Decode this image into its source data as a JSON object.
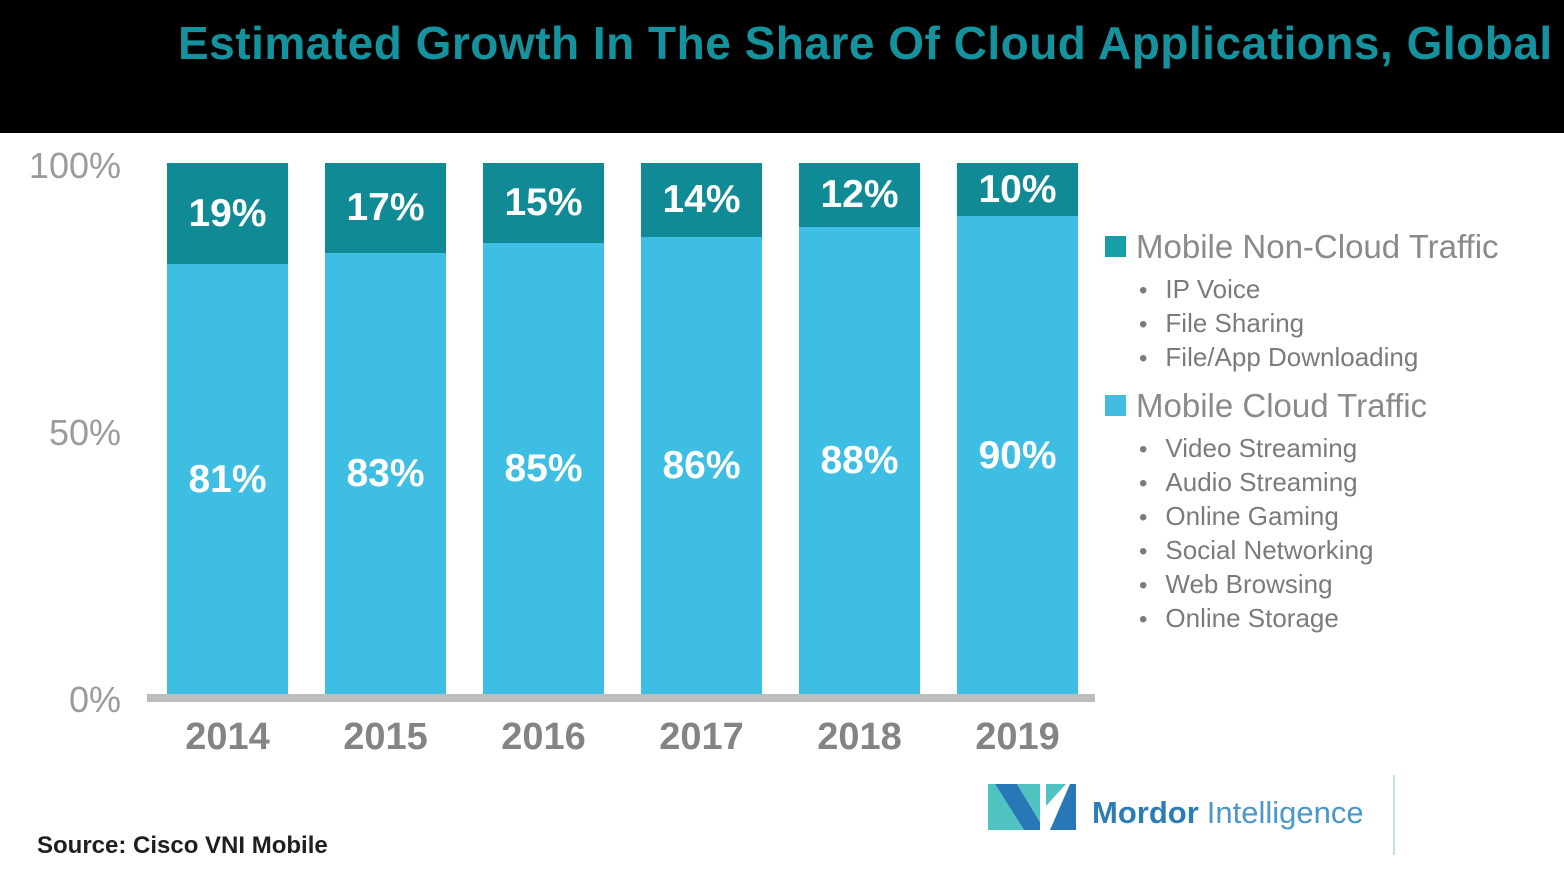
{
  "header": {
    "title": "Estimated Growth In The Share Of Cloud Applications, Global"
  },
  "chart_data": {
    "type": "bar",
    "stacked": true,
    "title": "Estimated Growth In The Share Of Cloud Applications, Global",
    "categories": [
      "2014",
      "2015",
      "2016",
      "2017",
      "2018",
      "2019"
    ],
    "series": [
      {
        "name": "Mobile Non-Cloud Traffic",
        "color": "#108A94",
        "values": [
          19,
          17,
          15,
          14,
          12,
          10
        ]
      },
      {
        "name": "Mobile Cloud Traffic",
        "color": "#3DBEE2",
        "values": [
          81,
          83,
          85,
          86,
          88,
          90
        ]
      }
    ],
    "value_suffix": "%",
    "ylim": [
      0,
      100
    ],
    "yticks": [
      "100%",
      "50%",
      "0%"
    ],
    "grid": false,
    "legend_position": "right"
  },
  "legend": {
    "bullet": "•",
    "groups": [
      {
        "label": "Mobile Non-Cloud Traffic",
        "color": "#16A0A6",
        "items": [
          "IP Voice",
          "File Sharing",
          "File/App Downloading"
        ]
      },
      {
        "label": "Mobile Cloud Traffic",
        "color": "#44BCDF",
        "items": [
          "Video Streaming",
          "Audio Streaming",
          "Online Gaming",
          "Social Networking",
          "Web Browsing",
          "Online Storage"
        ]
      }
    ]
  },
  "footer": {
    "source": "Source: Cisco VNI Mobile",
    "brand_bold": "Mordor",
    "brand_light": "Intelligence"
  },
  "colors": {
    "header_bg": "#000000",
    "title_text": "#14939F",
    "axis_line": "#BDBDBD",
    "logo_teal": "#4EC3BF",
    "logo_blue": "#2878B8"
  }
}
